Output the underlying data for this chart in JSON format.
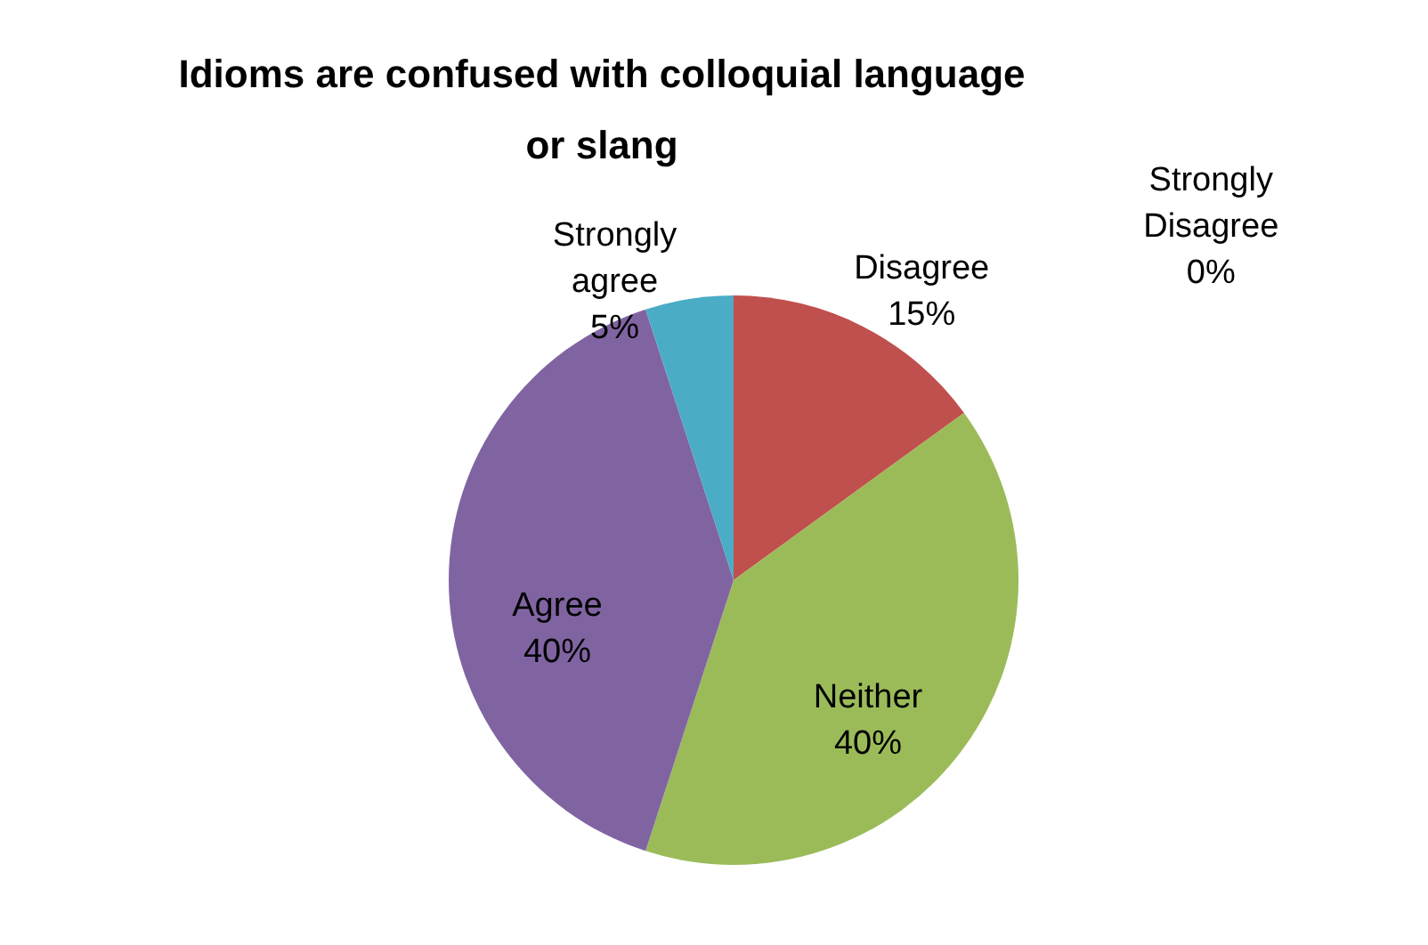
{
  "chart_data": {
    "type": "pie",
    "title": "Idioms are confused with colloquial language or slang",
    "categories": [
      "Strongly Disagree",
      "Disagree",
      "Neither",
      "Agree",
      "Strongly agree"
    ],
    "values": [
      0,
      15,
      40,
      40,
      5
    ],
    "colors": [
      "#4f81bd",
      "#c0504d",
      "#9bbb59",
      "#8064a2",
      "#4bacc6"
    ],
    "value_labels": [
      "0%",
      "15%",
      "40%",
      "40%",
      "5%"
    ]
  }
}
